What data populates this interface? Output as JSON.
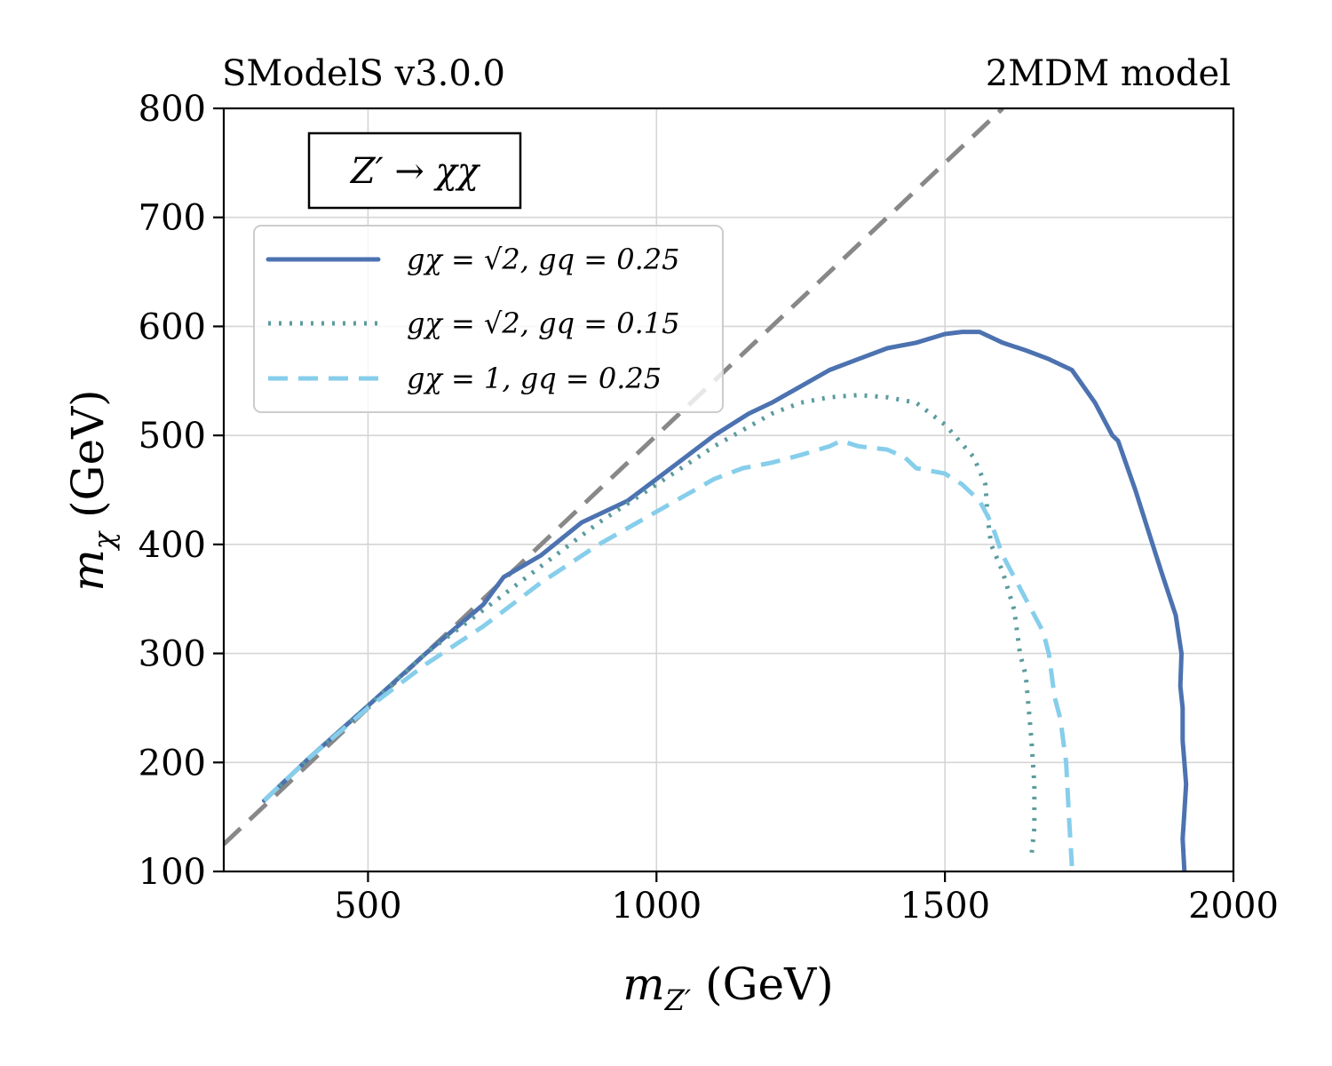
{
  "chart_data": {
    "type": "line",
    "top_left_label": "SModelS v3.0.0",
    "top_right_label": "2MDM model",
    "process_label": "Z′ → χχ",
    "xlabel": "m_Z′ (GeV)",
    "xlabel_main": "m",
    "xlabel_sub": "Z′",
    "xlabel_unit": " (GeV)",
    "ylabel": "m_χ (GeV)",
    "ylabel_main": "m",
    "ylabel_sub": "χ",
    "ylabel_unit": " (GeV)",
    "xlim": [
      250,
      2000
    ],
    "ylim": [
      100,
      800
    ],
    "xticks": [
      500,
      1000,
      1500,
      2000
    ],
    "yticks": [
      100,
      200,
      300,
      400,
      500,
      600,
      700,
      800
    ],
    "grid": true,
    "legend_position": "upper-left",
    "diagonal": {
      "name": "m_χ = m_Z′/2",
      "slope": 0.5,
      "color": "#888888",
      "style": "dashed"
    },
    "series": [
      {
        "name": "g_χ = √2, g_q = 0.25",
        "legend": "gχ = √2, gq = 0.25",
        "color": "#4C72B0",
        "style": "solid",
        "x": [
          320,
          400,
          500,
          600,
          700,
          735,
          800,
          870,
          950,
          1000,
          1050,
          1100,
          1160,
          1200,
          1250,
          1300,
          1350,
          1400,
          1450,
          1500,
          1530,
          1560,
          1600,
          1640,
          1680,
          1720,
          1760,
          1790,
          1800,
          1830,
          1860,
          1875,
          1900,
          1910,
          1908,
          1912,
          1912,
          1915,
          1918,
          1915,
          1912,
          1915
        ],
        "y": [
          165,
          205,
          252,
          300,
          345,
          370,
          390,
          420,
          440,
          460,
          480,
          500,
          520,
          530,
          545,
          560,
          570,
          580,
          585,
          593,
          595,
          595,
          585,
          578,
          570,
          560,
          530,
          500,
          495,
          450,
          400,
          375,
          335,
          300,
          270,
          250,
          220,
          200,
          180,
          155,
          130,
          100
        ]
      },
      {
        "name": "g_χ = √2, g_q = 0.15",
        "legend": "gχ = √2, gq = 0.15",
        "color": "#5B9B9F",
        "style": "dotted",
        "x": [
          320,
          400,
          500,
          600,
          700,
          800,
          900,
          1000,
          1100,
          1150,
          1200,
          1250,
          1300,
          1350,
          1400,
          1450,
          1500,
          1550,
          1570,
          1575,
          1580,
          1600,
          1620,
          1630,
          1640,
          1645,
          1650,
          1655,
          1655,
          1650
        ],
        "y": [
          165,
          205,
          252,
          300,
          340,
          380,
          420,
          455,
          490,
          505,
          520,
          530,
          535,
          537,
          535,
          530,
          510,
          480,
          455,
          420,
          400,
          375,
          340,
          300,
          280,
          250,
          220,
          180,
          140,
          115
        ]
      },
      {
        "name": "g_χ = 1, g_q = 0.25",
        "legend": "gχ = 1, gq = 0.25",
        "color": "#86CEEB",
        "style": "dashed",
        "x": [
          320,
          400,
          500,
          600,
          700,
          800,
          900,
          1000,
          1050,
          1100,
          1150,
          1200,
          1250,
          1300,
          1320,
          1350,
          1400,
          1430,
          1450,
          1500,
          1530,
          1560,
          1580,
          1600,
          1640,
          1670,
          1680,
          1690,
          1700,
          1710,
          1715,
          1720
        ],
        "y": [
          165,
          205,
          250,
          290,
          325,
          365,
          400,
          430,
          445,
          460,
          470,
          475,
          482,
          490,
          495,
          490,
          487,
          480,
          470,
          465,
          455,
          440,
          420,
          390,
          350,
          320,
          300,
          260,
          240,
          200,
          150,
          105
        ]
      }
    ]
  }
}
